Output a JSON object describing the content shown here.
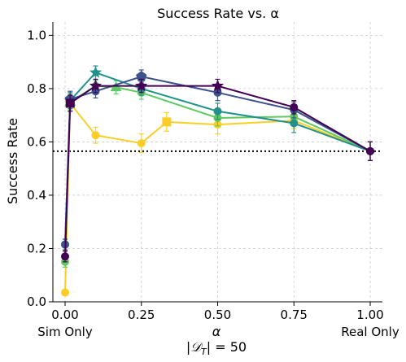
{
  "chart_data": {
    "type": "line",
    "title": "Success Rate vs. α",
    "xlabel": "α",
    "xlabel2": "|𝒟",
    "xlabel2_sub": "T",
    "xlabel2_rest": "| = 50",
    "ylabel": "Success Rate",
    "xlim": [
      -0.04,
      1.04
    ],
    "ylim": [
      0.0,
      1.05
    ],
    "grid": true,
    "x_ticks": [
      0.0,
      0.25,
      0.5,
      0.75,
      1.0
    ],
    "x_tick_labels": [
      "0.00",
      "0.25",
      "0.50",
      "0.75",
      "1.00"
    ],
    "x_extra_labels": [
      {
        "x": 0.0,
        "text": "Sim Only"
      },
      {
        "x": 1.0,
        "text": "Real Only"
      }
    ],
    "y_ticks": [
      0.0,
      0.2,
      0.4,
      0.6,
      0.8,
      1.0
    ],
    "y_tick_labels": [
      "0.0",
      "0.2",
      "0.4",
      "0.6",
      "0.8",
      "1.0"
    ],
    "reference_line": {
      "y": 0.565,
      "style": "dotted",
      "color": "#000000"
    },
    "series": [
      {
        "color": "#fcce25",
        "marker": "square",
        "points": [
          {
            "x": 0.0,
            "y": 0.035,
            "err": 0.01,
            "marker": "circle"
          },
          {
            "x": 0.0167,
            "y": 0.745,
            "err": 0.03
          },
          {
            "x": 0.1,
            "y": 0.625,
            "err": 0.03,
            "marker": "circle"
          },
          {
            "x": 0.25,
            "y": 0.595,
            "err": 0.035,
            "marker": "circle"
          },
          {
            "x": 0.333,
            "y": 0.675,
            "err": 0.035
          },
          {
            "x": 0.5,
            "y": 0.665,
            "err": 0.035,
            "marker": "circle"
          },
          {
            "x": 0.75,
            "y": 0.68,
            "err": 0.03,
            "marker": "circle"
          },
          {
            "x": 1.0,
            "y": 0.565,
            "err": 0.035,
            "marker": "circle"
          }
        ]
      },
      {
        "color": "#5ec962",
        "marker": "triangle",
        "points": [
          {
            "x": 0.0,
            "y": 0.15,
            "err": 0.02,
            "marker": "circle"
          },
          {
            "x": 0.0167,
            "y": 0.75,
            "err": 0.03
          },
          {
            "x": 0.1,
            "y": 0.81,
            "err": 0.02,
            "marker": "circle"
          },
          {
            "x": 0.167,
            "y": 0.805,
            "err": 0.025
          },
          {
            "x": 0.25,
            "y": 0.785,
            "err": 0.025,
            "marker": "circle"
          },
          {
            "x": 0.5,
            "y": 0.69,
            "err": 0.03,
            "marker": "circle"
          },
          {
            "x": 0.75,
            "y": 0.695,
            "err": 0.03,
            "marker": "circle"
          },
          {
            "x": 1.0,
            "y": 0.565,
            "err": 0.035,
            "marker": "circle"
          }
        ]
      },
      {
        "color": "#21918c",
        "marker": "star",
        "points": [
          {
            "x": 0.0,
            "y": 0.215,
            "err": 0.02,
            "marker": "circle"
          },
          {
            "x": 0.0167,
            "y": 0.755,
            "err": 0.03
          },
          {
            "x": 0.1,
            "y": 0.86,
            "err": 0.025
          },
          {
            "x": 0.25,
            "y": 0.8,
            "err": 0.025,
            "marker": "circle"
          },
          {
            "x": 0.5,
            "y": 0.715,
            "err": 0.03,
            "marker": "circle"
          },
          {
            "x": 0.75,
            "y": 0.67,
            "err": 0.035,
            "marker": "circle"
          },
          {
            "x": 1.0,
            "y": 0.565,
            "err": 0.035,
            "marker": "circle"
          }
        ]
      },
      {
        "color": "#3b528b",
        "marker": "pentagon",
        "points": [
          {
            "x": 0.0,
            "y": 0.215,
            "err": 0.02,
            "marker": "circle"
          },
          {
            "x": 0.0167,
            "y": 0.76,
            "err": 0.03
          },
          {
            "x": 0.1,
            "y": 0.79,
            "err": 0.025,
            "marker": "circle"
          },
          {
            "x": 0.25,
            "y": 0.845,
            "err": 0.025
          },
          {
            "x": 0.5,
            "y": 0.785,
            "err": 0.03,
            "marker": "circle"
          },
          {
            "x": 0.75,
            "y": 0.72,
            "err": 0.03,
            "marker": "circle"
          },
          {
            "x": 1.0,
            "y": 0.565,
            "err": 0.035,
            "marker": "circle"
          }
        ]
      },
      {
        "color": "#440154",
        "marker": "square",
        "points": [
          {
            "x": 0.0,
            "y": 0.17,
            "err": 0.02,
            "marker": "circle"
          },
          {
            "x": 0.0167,
            "y": 0.745,
            "err": 0.03
          },
          {
            "x": 0.1,
            "y": 0.81,
            "err": 0.025,
            "marker": "star"
          },
          {
            "x": 0.25,
            "y": 0.81,
            "err": 0.025,
            "marker": "star"
          },
          {
            "x": 0.5,
            "y": 0.81,
            "err": 0.025,
            "marker": "star"
          },
          {
            "x": 0.75,
            "y": 0.73,
            "err": 0.025,
            "marker": "circle"
          },
          {
            "x": 1.0,
            "y": 0.565,
            "err": 0.035,
            "marker": "circle"
          }
        ]
      }
    ]
  }
}
